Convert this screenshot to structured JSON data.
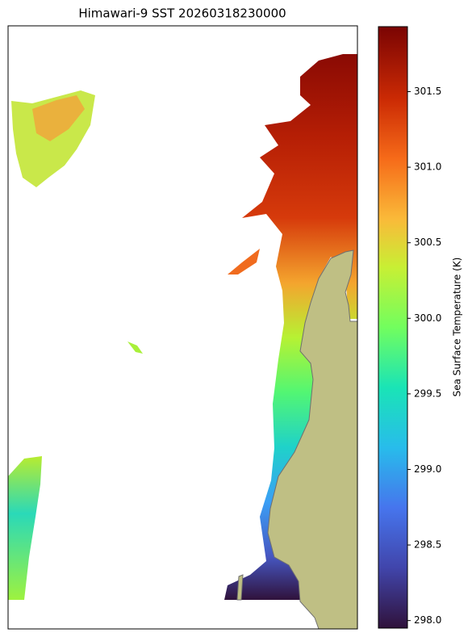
{
  "title": "Himawari-9 SST 20260318230000",
  "colorbar": {
    "label": "Sea Surface Temperature (K)",
    "lim": [
      297.95,
      301.93
    ],
    "ticks": [
      {
        "value": 298.0,
        "label": "298.0"
      },
      298.5,
      {
        "value": 299.0,
        "label": "299.0"
      },
      299.5,
      {
        "value": 300.0,
        "label": "300.0"
      },
      300.5,
      {
        "value": 301.0,
        "label": "301.0"
      },
      301.5
    ]
  }
}
